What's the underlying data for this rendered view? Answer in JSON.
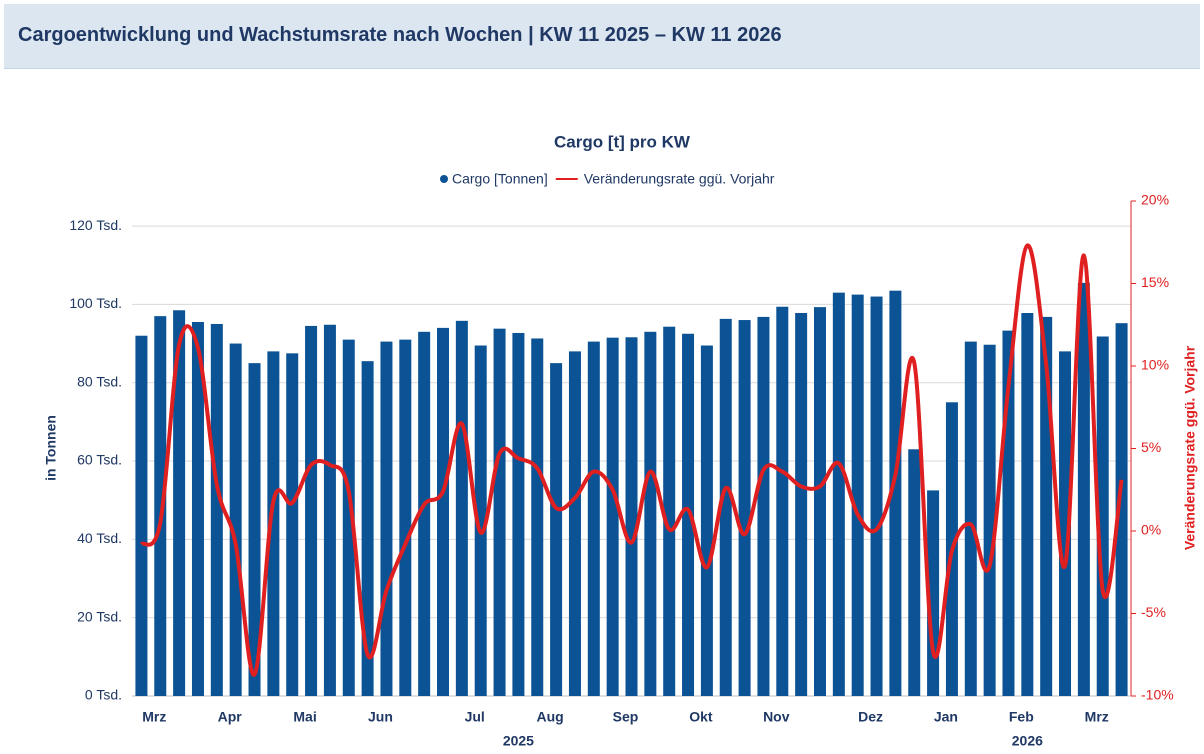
{
  "header": {
    "title": "Cargoentwicklung und Wachstumsrate nach Wochen | KW 11 2025 – KW 11 2026"
  },
  "chart_data": {
    "type": "bar-line",
    "title": "Cargo [t] pro KW",
    "y_label": "in Tonnen",
    "y2_label": "Veränderungsrate ggü. Vorjahr",
    "categories": [
      null,
      "Mrz",
      null,
      null,
      null,
      "Apr",
      null,
      null,
      null,
      "Mai",
      null,
      null,
      null,
      "Jun",
      null,
      null,
      null,
      null,
      "Jul",
      null,
      null,
      null,
      "Aug",
      null,
      null,
      null,
      "Sep",
      null,
      null,
      null,
      "Okt",
      null,
      null,
      null,
      "Nov",
      null,
      null,
      null,
      null,
      "Dez",
      null,
      null,
      null,
      "Jan",
      null,
      null,
      null,
      "Feb",
      null,
      null,
      null,
      "Mrz",
      null
    ],
    "year_categories": [
      null,
      null,
      null,
      null,
      null,
      null,
      null,
      null,
      null,
      null,
      null,
      null,
      null,
      null,
      null,
      null,
      null,
      null,
      null,
      null,
      "2025",
      null,
      null,
      null,
      null,
      null,
      null,
      null,
      null,
      null,
      null,
      null,
      null,
      null,
      null,
      null,
      null,
      null,
      null,
      null,
      null,
      null,
      null,
      null,
      null,
      null,
      null,
      "2026",
      null,
      null,
      null,
      null,
      null
    ],
    "series": [
      {
        "name": "Cargo [Tonnen]",
        "color": "#0b5394",
        "values": [
          92,
          97,
          98.5,
          95.5,
          95,
          90,
          85,
          88,
          87.5,
          94.5,
          94.8,
          91,
          85.5,
          90.5,
          91,
          93,
          94,
          95.8,
          89.5,
          93.8,
          92.7,
          91.3,
          85,
          88,
          90.5,
          91.5,
          91.6,
          93,
          94.3,
          92.5,
          89.5,
          96.3,
          96,
          96.8,
          99.4,
          97.8,
          99.3,
          103,
          102.5,
          102,
          103.5,
          63,
          52.5,
          75,
          90.5,
          89.7,
          93.3,
          97.8,
          96.8,
          88,
          105.5,
          91.8,
          95.2
        ]
      },
      {
        "name": "Veränderungsrate ggü. Vorjahr",
        "color": "#e02020",
        "axis": "y2",
        "values": [
          -0.8,
          0.5,
          11.3,
          11.1,
          2.8,
          -0.8,
          -8.7,
          1.8,
          1.7,
          4,
          4,
          2.4,
          -7.5,
          -3.6,
          -0.8,
          1.6,
          2.4,
          6.5,
          -0.1,
          4.7,
          4.4,
          3.8,
          1.4,
          2,
          3.6,
          2.5,
          -0.7,
          3.6,
          0.1,
          1.3,
          -2.2,
          2.6,
          -0.2,
          3.7,
          3.6,
          2.7,
          2.7,
          4.1,
          1,
          0.1,
          3.4,
          10.2,
          -7.3,
          -1.2,
          0.4,
          -2.1,
          8.8,
          17.3,
          10.1,
          -2.1,
          16.7,
          -3.6,
          3.1
        ]
      }
    ],
    "ylim": [
      0,
      126.4
    ],
    "yticks": [
      {
        "value": 0,
        "label": "0 Tsd."
      },
      {
        "value": 20,
        "label": "20 Tsd."
      },
      {
        "value": 40,
        "label": "40 Tsd."
      },
      {
        "value": 60,
        "label": "60 Tsd."
      },
      {
        "value": 80,
        "label": "80 Tsd."
      },
      {
        "value": 100,
        "label": "100 Tsd."
      },
      {
        "value": 120,
        "label": "120 Tsd."
      }
    ],
    "y2lim": [
      -10,
      20
    ],
    "y2ticks": [
      {
        "value": -10,
        "label": "-10%"
      },
      {
        "value": -5,
        "label": "-5%"
      },
      {
        "value": 0,
        "label": "0%"
      },
      {
        "value": 5,
        "label": "5%"
      },
      {
        "value": 10,
        "label": "10%"
      },
      {
        "value": 15,
        "label": "15%"
      },
      {
        "value": 20,
        "label": "20%"
      }
    ],
    "grid": true
  }
}
